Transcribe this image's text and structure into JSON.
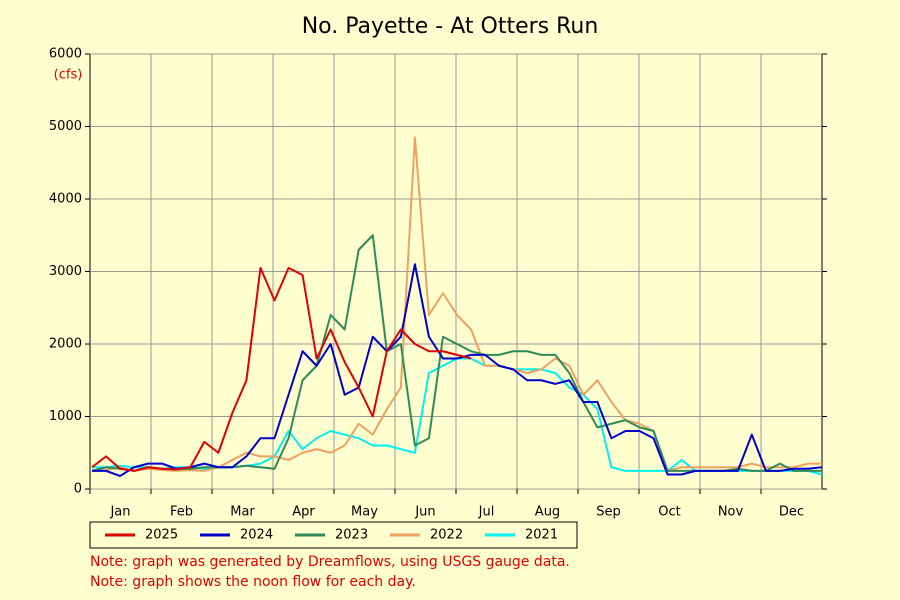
{
  "chart_data": {
    "type": "line",
    "title": "No. Payette - At Otters Run",
    "ylabel": "(cfs)",
    "categories": [
      "Jan",
      "Feb",
      "Mar",
      "Apr",
      "May",
      "Jun",
      "Jul",
      "Aug",
      "Sep",
      "Oct",
      "Nov",
      "Dec"
    ],
    "x": [
      1,
      8,
      15,
      22,
      29,
      36,
      43,
      50,
      57,
      64,
      71,
      78,
      85,
      92,
      99,
      106,
      113,
      120,
      127,
      134,
      141,
      148,
      155,
      162,
      169,
      176,
      183,
      190,
      197,
      204,
      211,
      218,
      225,
      232,
      239,
      246,
      253,
      260,
      267,
      274,
      281,
      288,
      295,
      302,
      309,
      316,
      323,
      330,
      337,
      344,
      351,
      358,
      365
    ],
    "xlim": [
      0,
      365
    ],
    "ylim": [
      0,
      6000
    ],
    "yticks": [
      0,
      1000,
      2000,
      3000,
      4000,
      5000,
      6000
    ],
    "grid": true,
    "series": [
      {
        "name": "2025",
        "color": "#e00000",
        "values": [
          300,
          450,
          280,
          250,
          300,
          280,
          270,
          300,
          650,
          500,
          1050,
          1500,
          3050,
          2600,
          3050,
          2950,
          1800,
          2200,
          1750,
          1400,
          1000,
          1900,
          2200,
          2000,
          1900,
          1900,
          1850,
          1800,
          null,
          null,
          null,
          null,
          null,
          null,
          null,
          null,
          null,
          null,
          null,
          null,
          null,
          null,
          null,
          null,
          null,
          null,
          null,
          null,
          null,
          null,
          null,
          null,
          null
        ]
      },
      {
        "name": "2024",
        "color": "#0000cc",
        "values": [
          250,
          250,
          180,
          300,
          350,
          350,
          280,
          300,
          350,
          300,
          300,
          450,
          700,
          700,
          1300,
          1900,
          1700,
          2000,
          1300,
          1400,
          2100,
          1900,
          2100,
          3100,
          2100,
          1800,
          1800,
          1850,
          1850,
          1700,
          1650,
          1500,
          1500,
          1450,
          1500,
          1200,
          1200,
          700,
          800,
          800,
          700,
          200,
          200,
          250,
          250,
          250,
          250,
          750,
          250,
          250,
          280,
          280,
          300
        ]
      },
      {
        "name": "2023",
        "color": "#2e8b57",
        "values": [
          250,
          300,
          280,
          250,
          300,
          280,
          270,
          280,
          300,
          300,
          300,
          320,
          300,
          280,
          700,
          1500,
          1700,
          2400,
          2200,
          3300,
          3500,
          1900,
          2000,
          600,
          700,
          2100,
          2000,
          1900,
          1850,
          1850,
          1900,
          1900,
          1850,
          1850,
          1600,
          1200,
          850,
          900,
          950,
          850,
          800,
          250,
          250,
          250,
          250,
          250,
          280,
          250,
          250,
          350,
          250,
          250,
          250
        ]
      },
      {
        "name": "2022",
        "color": "#f0a060",
        "values": [
          250,
          260,
          300,
          250,
          280,
          260,
          250,
          260,
          250,
          300,
          400,
          500,
          450,
          450,
          400,
          500,
          550,
          500,
          600,
          900,
          750,
          1100,
          1400,
          4850,
          2400,
          2700,
          2400,
          2200,
          1700,
          1700,
          1650,
          1600,
          1650,
          1800,
          1700,
          1300,
          1500,
          1200,
          950,
          900,
          800,
          250,
          300,
          300,
          300,
          300,
          300,
          350,
          300,
          300,
          300,
          350,
          350
        ]
      },
      {
        "name": "2021",
        "color": "#00f0f0",
        "values": [
          300,
          300,
          320,
          300,
          300,
          280,
          300,
          300,
          280,
          300,
          300,
          320,
          350,
          450,
          800,
          550,
          700,
          800,
          750,
          700,
          600,
          600,
          550,
          500,
          1600,
          1700,
          1800,
          1800,
          1700,
          1700,
          1650,
          1650,
          1650,
          1600,
          1400,
          1300,
          1100,
          300,
          250,
          250,
          250,
          250,
          400,
          250,
          250,
          250,
          250,
          250,
          250,
          250,
          250,
          250,
          200
        ]
      }
    ],
    "notes": [
      "Note: graph was generated by Dreamflows, using USGS gauge data.",
      "Note: graph shows the noon flow for each day."
    ]
  }
}
